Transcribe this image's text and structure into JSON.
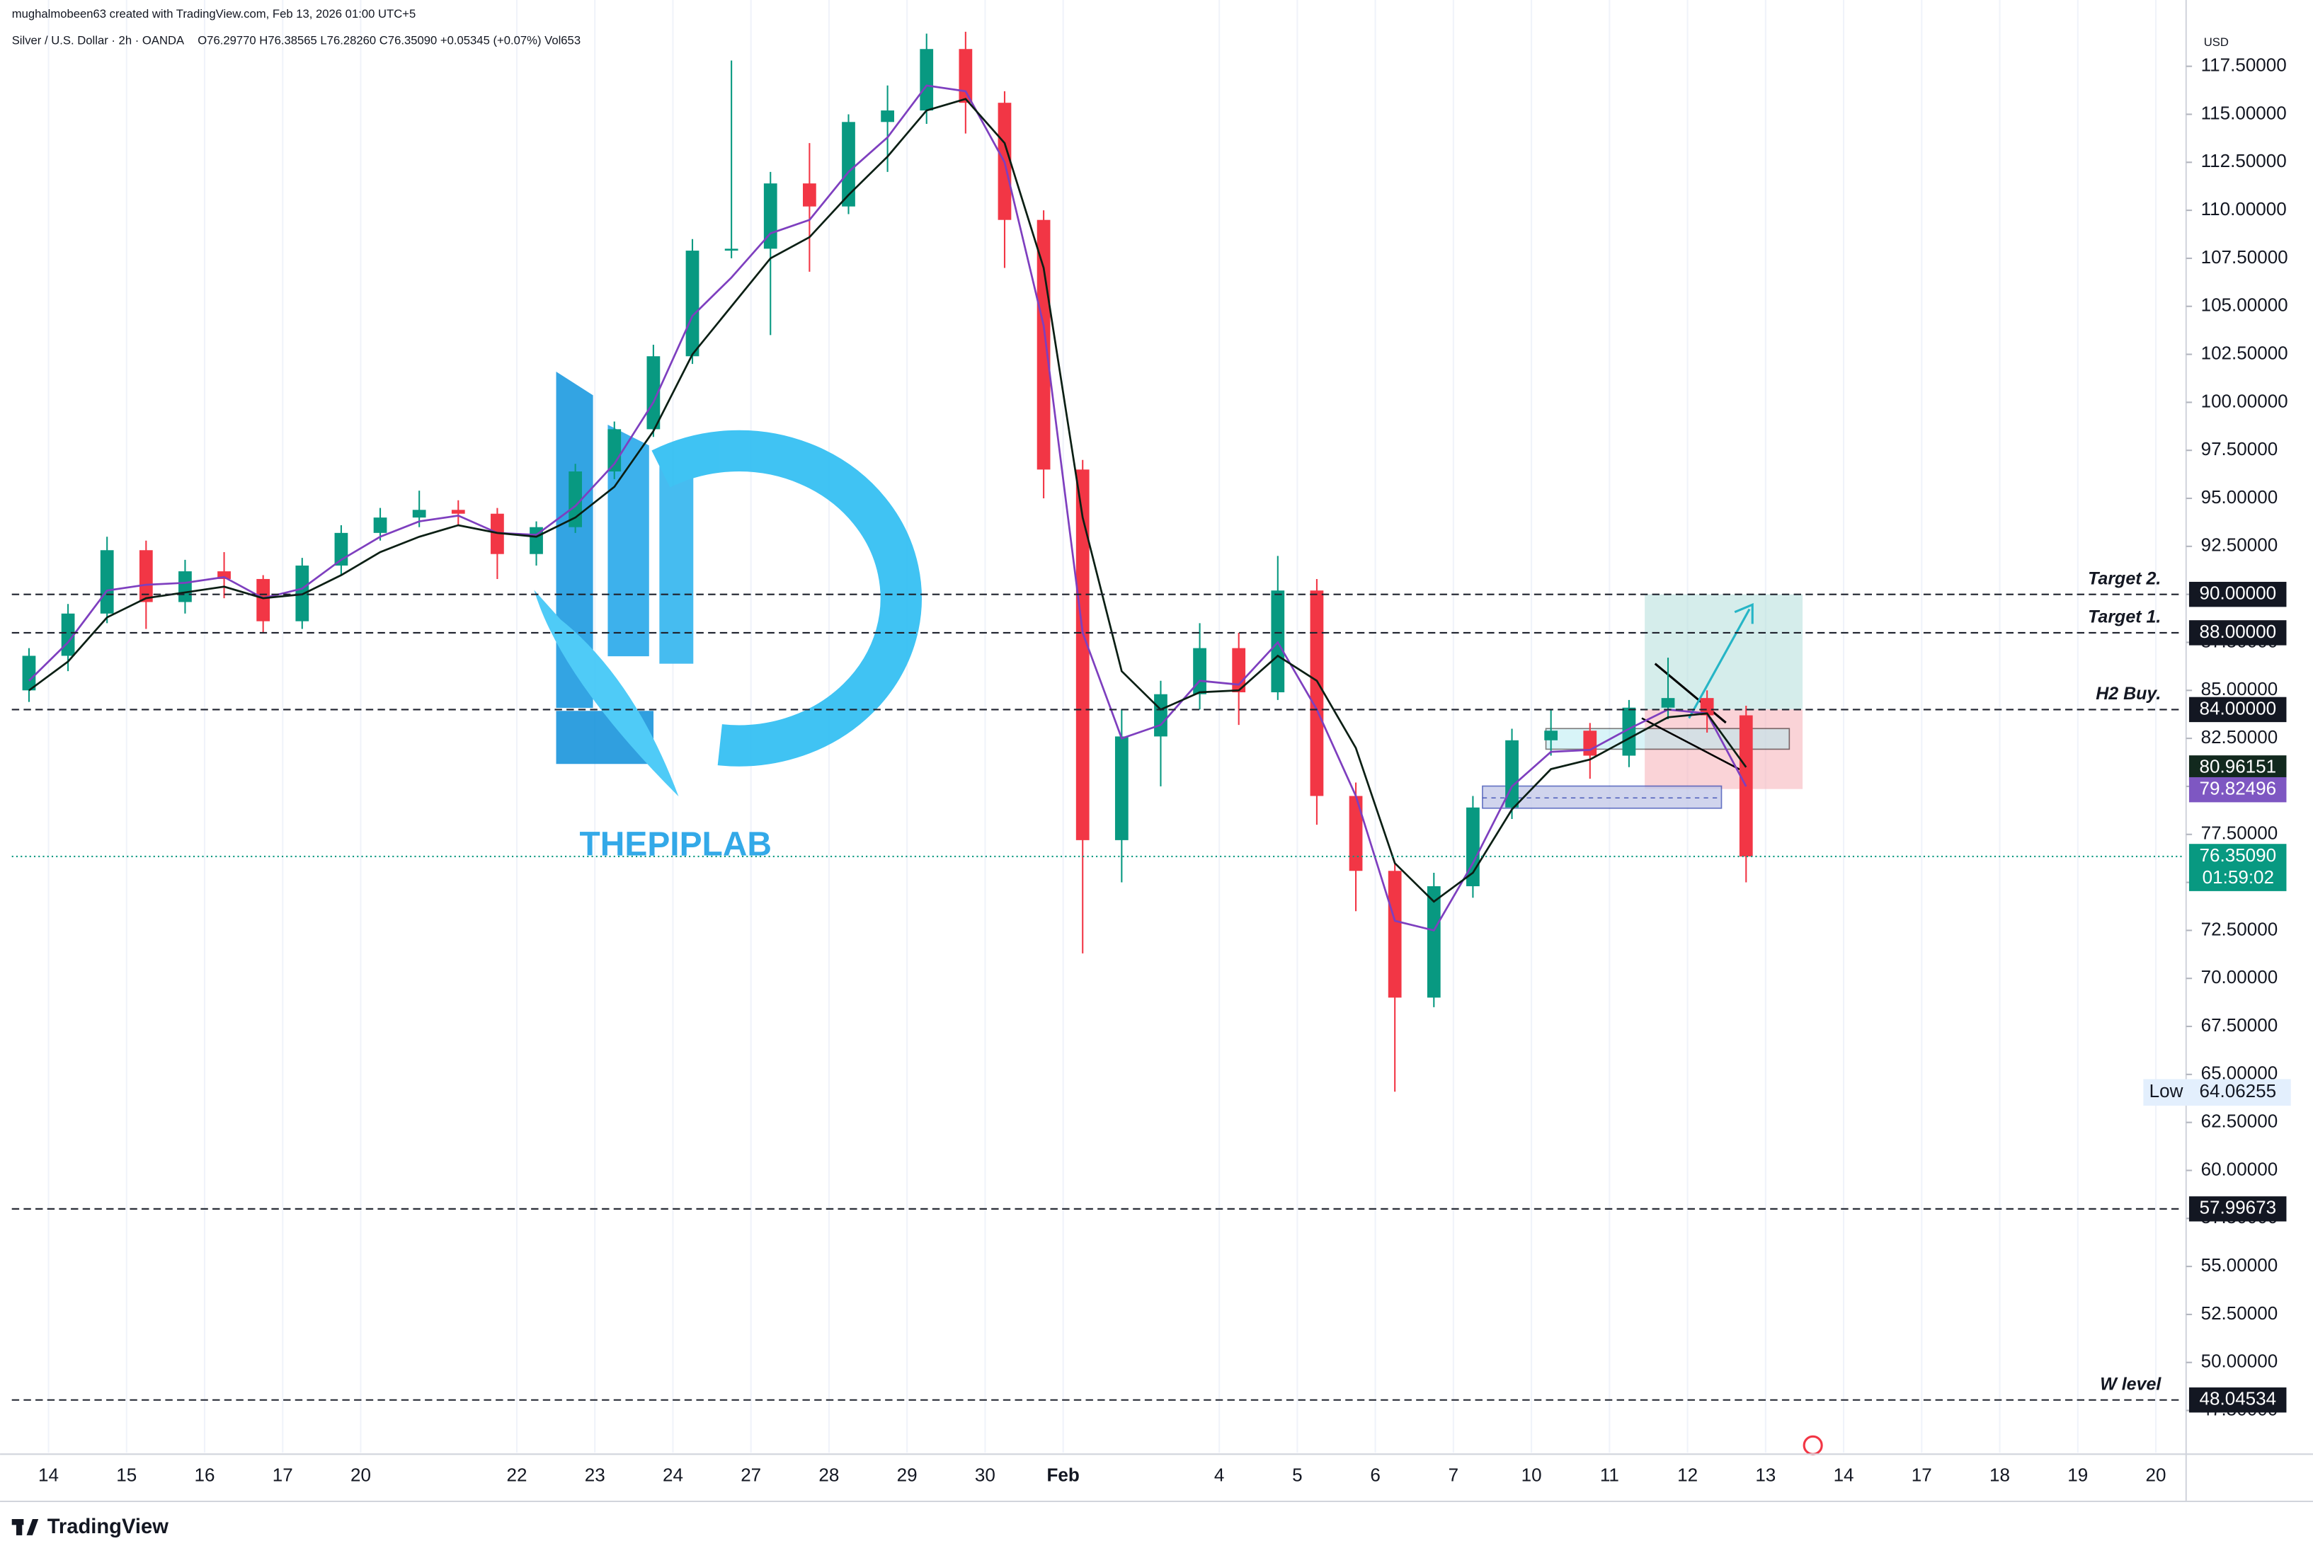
{
  "chart_data": {
    "type": "candlestick",
    "credit": "mughalmobeen63 created with TradingView.com, Feb 13, 2026 01:00 UTC+5",
    "title": "Silver / U.S. Dollar · 2h · OANDA",
    "ohlc_text": "O76.29770 H76.38565 L76.28260 C76.35090 +0.05345 (+0.07%) Vol653",
    "currency": "USD",
    "brand": "TradingView",
    "watermark": "THEPIPLAB",
    "up_color": "#089981",
    "down_color": "#f23645",
    "grid": true,
    "xlim": [
      -0.47,
      27.35
    ],
    "ylim": [
      45.3,
      119.57
    ],
    "xticks": [
      {
        "value": 0,
        "label": "14"
      },
      {
        "value": 1,
        "label": "15"
      },
      {
        "value": 2,
        "label": "16"
      },
      {
        "value": 3,
        "label": "17"
      },
      {
        "value": 4,
        "label": "20"
      },
      {
        "value": 6,
        "label": "22"
      },
      {
        "value": 7,
        "label": "23"
      },
      {
        "value": 8,
        "label": "24"
      },
      {
        "value": 9,
        "label": "27"
      },
      {
        "value": 10,
        "label": "28"
      },
      {
        "value": 11,
        "label": "29"
      },
      {
        "value": 12,
        "label": "30"
      },
      {
        "value": 13,
        "label": "Feb"
      },
      {
        "value": 15,
        "label": "4"
      },
      {
        "value": 16,
        "label": "5"
      },
      {
        "value": 17,
        "label": "6"
      },
      {
        "value": 18,
        "label": "7"
      },
      {
        "value": 19,
        "label": "10"
      },
      {
        "value": 20,
        "label": "11"
      },
      {
        "value": 21,
        "label": "12"
      },
      {
        "value": 22,
        "label": "13"
      },
      {
        "value": 23,
        "label": "14"
      },
      {
        "value": 24,
        "label": "17"
      },
      {
        "value": 25,
        "label": "18"
      },
      {
        "value": 26,
        "label": "19"
      },
      {
        "value": 27,
        "label": "20"
      }
    ],
    "yticks": [
      {
        "value": 47.5,
        "label": "47.50000"
      },
      {
        "value": 50,
        "label": "50.00000"
      },
      {
        "value": 52.5,
        "label": "52.50000"
      },
      {
        "value": 55,
        "label": "55.00000"
      },
      {
        "value": 57.5,
        "label": "57.50000"
      },
      {
        "value": 60,
        "label": "60.00000"
      },
      {
        "value": 62.5,
        "label": "62.50000"
      },
      {
        "value": 65,
        "label": "65.00000"
      },
      {
        "value": 67.5,
        "label": "67.50000"
      },
      {
        "value": 70,
        "label": "70.00000"
      },
      {
        "value": 72.5,
        "label": "72.50000"
      },
      {
        "value": 75,
        "label": "75.00000"
      },
      {
        "value": 77.5,
        "label": "77.50000"
      },
      {
        "value": 80,
        "label": "80.00000"
      },
      {
        "value": 82.5,
        "label": "82.50000"
      },
      {
        "value": 85,
        "label": "85.00000"
      },
      {
        "value": 87.5,
        "label": "87.50000"
      },
      {
        "value": 90,
        "label": "90.00000"
      },
      {
        "value": 92.5,
        "label": "92.50000"
      },
      {
        "value": 95,
        "label": "95.00000"
      },
      {
        "value": 97.5,
        "label": "97.50000"
      },
      {
        "value": 100,
        "label": "100.00000"
      },
      {
        "value": 102.5,
        "label": "102.50000"
      },
      {
        "value": 105,
        "label": "105.00000"
      },
      {
        "value": 107.5,
        "label": "107.50000"
      },
      {
        "value": 110,
        "label": "110.00000"
      },
      {
        "value": 112.5,
        "label": "112.50000"
      },
      {
        "value": 115,
        "label": "115.00000"
      },
      {
        "value": 117.5,
        "label": "117.50000"
      }
    ],
    "candles": {
      "x": [
        -0.25,
        0.25,
        0.75,
        1.25,
        1.75,
        2.25,
        2.75,
        3.25,
        3.75,
        4.25,
        4.75,
        5.25,
        5.75,
        6.25,
        6.75,
        7.25,
        7.75,
        8.25,
        8.75,
        9.25,
        9.75,
        10.25,
        10.75,
        11.25,
        11.75,
        12.25,
        12.75,
        13.25,
        13.75,
        14.25,
        14.75,
        15.25,
        15.75,
        16.25,
        16.75,
        17.25,
        17.75,
        18.25,
        18.75,
        19.25,
        19.75,
        20.25,
        20.75,
        21.25,
        21.75
      ],
      "open": [
        85.0,
        86.8,
        89.0,
        92.3,
        89.6,
        91.2,
        90.8,
        88.6,
        91.5,
        93.2,
        94.0,
        94.4,
        94.2,
        92.1,
        93.5,
        96.4,
        98.6,
        102.4,
        107.9,
        108.0,
        111.4,
        110.2,
        114.6,
        115.2,
        118.4,
        115.6,
        109.5,
        96.5,
        77.2,
        82.6,
        84.8,
        87.2,
        84.9,
        90.2,
        79.5,
        75.6,
        69.0,
        74.8,
        78.9,
        82.4,
        82.9,
        81.6,
        84.1,
        84.6,
        83.7
      ],
      "high": [
        87.2,
        89.5,
        93.0,
        92.8,
        91.8,
        92.2,
        91.0,
        91.9,
        93.6,
        94.5,
        95.4,
        94.9,
        94.5,
        93.8,
        96.8,
        99.0,
        103.0,
        108.5,
        117.8,
        112.0,
        113.5,
        115.0,
        116.5,
        119.2,
        119.3,
        116.2,
        110.0,
        97.0,
        84.0,
        85.5,
        88.5,
        88.0,
        92.0,
        90.8,
        80.2,
        76.0,
        75.5,
        79.5,
        83.0,
        84.0,
        83.3,
        84.5,
        86.7,
        85.0,
        84.2
      ],
      "low": [
        84.4,
        86.0,
        88.5,
        88.2,
        89.0,
        89.8,
        88.0,
        88.2,
        91.0,
        92.8,
        93.5,
        93.6,
        90.8,
        91.5,
        93.2,
        96.0,
        98.2,
        102.0,
        107.5,
        103.5,
        106.8,
        109.8,
        112.0,
        114.5,
        114.0,
        107.0,
        95.0,
        71.3,
        75.0,
        80.0,
        84.0,
        83.2,
        84.5,
        78.0,
        73.5,
        64.1,
        68.5,
        74.2,
        78.3,
        81.6,
        80.4,
        81.0,
        83.5,
        82.8,
        75.0
      ],
      "close": [
        86.8,
        89.0,
        92.3,
        89.6,
        91.2,
        90.8,
        88.6,
        91.5,
        93.2,
        94.0,
        94.4,
        94.2,
        92.1,
        93.5,
        96.4,
        98.6,
        102.4,
        107.9,
        108.0,
        111.4,
        110.2,
        114.6,
        115.2,
        118.4,
        115.6,
        109.5,
        96.5,
        77.2,
        82.6,
        84.8,
        87.2,
        84.9,
        90.2,
        79.5,
        75.6,
        69.0,
        74.8,
        78.9,
        82.4,
        82.9,
        81.6,
        84.1,
        84.6,
        83.7,
        76.3509
      ]
    },
    "overlays": [
      {
        "color": "#7e3fbf",
        "values": [
          85.5,
          87.5,
          90.2,
          90.5,
          90.6,
          90.9,
          89.8,
          90.3,
          91.8,
          93.0,
          93.8,
          94.1,
          93.2,
          93.1,
          94.6,
          96.8,
          100.0,
          104.5,
          106.5,
          108.8,
          109.5,
          112.0,
          113.8,
          116.5,
          116.2,
          112.5,
          104.0,
          88.0,
          82.5,
          83.2,
          85.5,
          85.3,
          87.5,
          84.0,
          79.5,
          73.0,
          72.5,
          76.0,
          80.0,
          81.8,
          81.9,
          83.0,
          84.0,
          83.8,
          80.0
        ]
      },
      {
        "color": "#0b1f14",
        "values": [
          85.0,
          86.5,
          88.8,
          89.8,
          90.1,
          90.4,
          89.8,
          90.0,
          91.0,
          92.2,
          93.0,
          93.6,
          93.2,
          93.0,
          94.0,
          95.6,
          98.5,
          102.5,
          105.0,
          107.5,
          108.6,
          110.8,
          112.8,
          115.2,
          115.8,
          113.5,
          107.0,
          94.0,
          86.0,
          84.0,
          84.9,
          85.0,
          86.8,
          85.5,
          82.0,
          76.0,
          74.0,
          75.5,
          78.8,
          80.9,
          81.4,
          82.5,
          83.6,
          83.8,
          81.0
        ]
      }
    ],
    "levels": [
      {
        "value": 90,
        "label": "90.00000",
        "name": "Target 2."
      },
      {
        "value": 88,
        "label": "88.00000",
        "name": "Target 1."
      },
      {
        "value": 84,
        "label": "84.00000",
        "name": "H2 Buy."
      },
      {
        "value": 57.99673,
        "label": "57.99673"
      },
      {
        "value": 48.04534,
        "label": "48.04534",
        "name": "W level"
      }
    ],
    "price_tags": [
      {
        "value": 80.96151,
        "label": "80.96151",
        "color": "#12291e"
      },
      {
        "value": 79.82496,
        "label": "79.82496",
        "color": "#7e57c2"
      }
    ],
    "last_price": {
      "value": 76.3509,
      "label": "76.35090",
      "countdown": "01:59:02",
      "color": "#089981"
    },
    "low": {
      "name": "Low",
      "value": 64.06255,
      "label": "64.06255"
    }
  }
}
